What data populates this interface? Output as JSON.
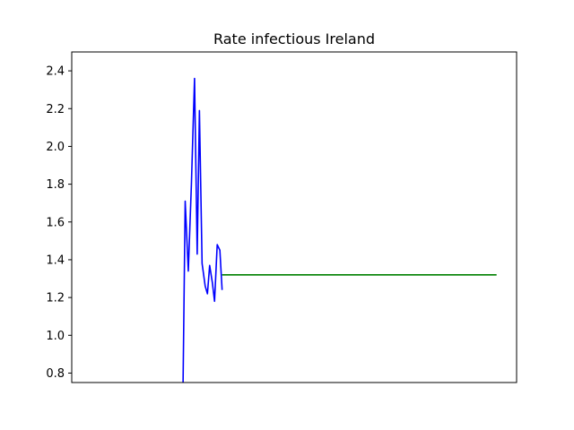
{
  "chart_data": {
    "type": "line",
    "title": "Rate infectious Ireland",
    "xlabel": "",
    "ylabel": "",
    "xlim": [
      0,
      100
    ],
    "ylim": [
      0.75,
      2.5
    ],
    "y_ticks": [
      "0.8",
      "1.0",
      "1.2",
      "1.4",
      "1.6",
      "1.8",
      "2.0",
      "2.2",
      "2.4"
    ],
    "grid": false,
    "series": [
      {
        "color": "#0000ff",
        "x": [
          25.0,
          25.5,
          26.2,
          26.9,
          27.6,
          28.2,
          28.7,
          29.3,
          30.0,
          30.5,
          31.0,
          31.6,
          32.1,
          32.7,
          33.3,
          33.8
        ],
        "y": [
          0.7,
          1.71,
          1.34,
          1.8,
          2.36,
          1.43,
          2.19,
          1.38,
          1.26,
          1.22,
          1.37,
          1.28,
          1.18,
          1.48,
          1.45,
          1.24
        ]
      },
      {
        "color": "#008000",
        "x": [
          33.8,
          95.5
        ],
        "y": [
          1.32,
          1.32
        ]
      }
    ]
  }
}
